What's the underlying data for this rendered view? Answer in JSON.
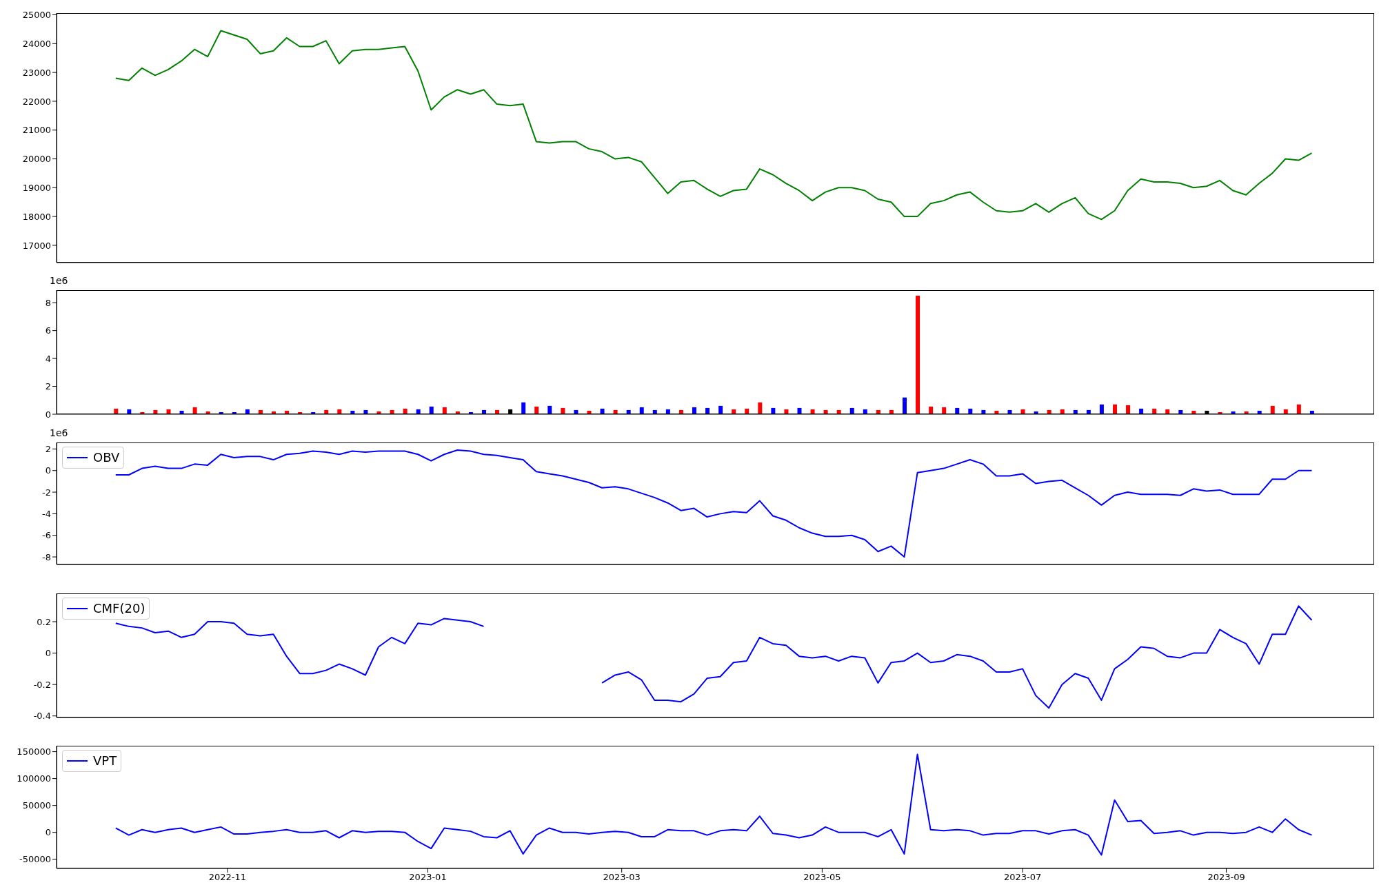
{
  "chart_data": [
    {
      "type": "line",
      "color": "#008000",
      "xlim": [
        "2022-09-10",
        "2023-10-16"
      ],
      "xticks": [
        "2022-11",
        "2023-01",
        "2023-03",
        "2023-05",
        "2023-07",
        "2023-09"
      ],
      "ylim": [
        16400,
        25060
      ],
      "yticks": [
        17000,
        18000,
        19000,
        20000,
        21000,
        22000,
        23000,
        24000,
        25000
      ],
      "tick_labels": "y",
      "x": [
        "2022-09-28",
        "2022-10-02",
        "2022-10-06",
        "2022-10-10",
        "2022-10-14",
        "2022-10-18",
        "2022-10-22",
        "2022-10-26",
        "2022-10-30",
        "2022-11-03",
        "2022-11-07",
        "2022-11-11",
        "2022-11-15",
        "2022-11-19",
        "2022-11-23",
        "2022-11-27",
        "2022-12-01",
        "2022-12-05",
        "2022-12-09",
        "2022-12-13",
        "2022-12-17",
        "2022-12-21",
        "2022-12-25",
        "2022-12-29",
        "2023-01-02",
        "2023-01-06",
        "2023-01-10",
        "2023-01-14",
        "2023-01-18",
        "2023-01-22",
        "2023-01-26",
        "2023-01-30",
        "2023-02-03",
        "2023-02-07",
        "2023-02-11",
        "2023-02-15",
        "2023-02-19",
        "2023-02-23",
        "2023-02-27",
        "2023-03-03",
        "2023-03-07",
        "2023-03-11",
        "2023-03-15",
        "2023-03-19",
        "2023-03-23",
        "2023-03-27",
        "2023-03-31",
        "2023-04-04",
        "2023-04-08",
        "2023-04-12",
        "2023-04-16",
        "2023-04-20",
        "2023-04-24",
        "2023-04-28",
        "2023-05-02",
        "2023-05-06",
        "2023-05-10",
        "2023-05-14",
        "2023-05-18",
        "2023-05-22",
        "2023-05-26",
        "2023-05-30",
        "2023-06-03",
        "2023-06-07",
        "2023-06-11",
        "2023-06-15",
        "2023-06-19",
        "2023-06-23",
        "2023-06-27",
        "2023-07-01",
        "2023-07-05",
        "2023-07-09",
        "2023-07-13",
        "2023-07-17",
        "2023-07-21",
        "2023-07-25",
        "2023-07-29",
        "2023-08-02",
        "2023-08-06",
        "2023-08-10",
        "2023-08-14",
        "2023-08-18",
        "2023-08-22",
        "2023-08-26",
        "2023-08-30",
        "2023-09-03",
        "2023-09-07",
        "2023-09-11",
        "2023-09-15",
        "2023-09-19",
        "2023-09-23",
        "2023-09-27"
      ],
      "values": [
        22800,
        22720,
        23150,
        22900,
        23100,
        23400,
        23800,
        23550,
        24450,
        24300,
        24150,
        23650,
        23750,
        24200,
        23900,
        23900,
        24100,
        23300,
        23750,
        23800,
        23800,
        23850,
        23900,
        23050,
        21700,
        22150,
        22400,
        22250,
        22400,
        21900,
        21850,
        21900,
        20600,
        20550,
        20600,
        20600,
        20350,
        20250,
        20000,
        20050,
        19900,
        19350,
        18800,
        19200,
        19250,
        18950,
        18700,
        18900,
        18950,
        19650,
        19450,
        19150,
        18900,
        18550,
        18850,
        19000,
        19000,
        18900,
        18600,
        18500,
        18000,
        18000,
        18450,
        18550,
        18750,
        18850,
        18500,
        18200,
        18150,
        18200,
        18450,
        18150,
        18450,
        18650,
        18100,
        17900,
        18200,
        18900,
        19300,
        19200,
        19200,
        19150,
        19000,
        19050,
        19250,
        18900,
        18750,
        19150,
        19500,
        20000,
        19950,
        20200
      ]
    },
    {
      "type": "bar",
      "xlim": [
        "2022-09-10",
        "2023-10-16"
      ],
      "xticks": [
        "2022-11",
        "2023-01",
        "2023-03",
        "2023-05",
        "2023-07",
        "2023-09"
      ],
      "ylim": [
        0,
        8.9
      ],
      "yticks": [
        0,
        2,
        4,
        6,
        8
      ],
      "tick_labels": "y",
      "annotations": [
        "1e6"
      ],
      "x": [
        "2022-09-28",
        "2022-10-02",
        "2022-10-06",
        "2022-10-10",
        "2022-10-14",
        "2022-10-18",
        "2022-10-22",
        "2022-10-26",
        "2022-10-30",
        "2022-11-03",
        "2022-11-07",
        "2022-11-11",
        "2022-11-15",
        "2022-11-19",
        "2022-11-23",
        "2022-11-27",
        "2022-12-01",
        "2022-12-05",
        "2022-12-09",
        "2022-12-13",
        "2022-12-17",
        "2022-12-21",
        "2022-12-25",
        "2022-12-29",
        "2023-01-02",
        "2023-01-06",
        "2023-01-10",
        "2023-01-14",
        "2023-01-18",
        "2023-01-22",
        "2023-01-26",
        "2023-01-30",
        "2023-02-03",
        "2023-02-07",
        "2023-02-11",
        "2023-02-15",
        "2023-02-19",
        "2023-02-23",
        "2023-02-27",
        "2023-03-03",
        "2023-03-07",
        "2023-03-11",
        "2023-03-15",
        "2023-03-19",
        "2023-03-23",
        "2023-03-27",
        "2023-03-31",
        "2023-04-04",
        "2023-04-08",
        "2023-04-12",
        "2023-04-16",
        "2023-04-20",
        "2023-04-24",
        "2023-04-28",
        "2023-05-02",
        "2023-05-06",
        "2023-05-10",
        "2023-05-14",
        "2023-05-18",
        "2023-05-22",
        "2023-05-26",
        "2023-05-30",
        "2023-06-03",
        "2023-06-07",
        "2023-06-11",
        "2023-06-15",
        "2023-06-19",
        "2023-06-23",
        "2023-06-27",
        "2023-07-01",
        "2023-07-05",
        "2023-07-09",
        "2023-07-13",
        "2023-07-17",
        "2023-07-21",
        "2023-07-25",
        "2023-07-29",
        "2023-08-02",
        "2023-08-06",
        "2023-08-10",
        "2023-08-14",
        "2023-08-18",
        "2023-08-22",
        "2023-08-26",
        "2023-08-30",
        "2023-09-03",
        "2023-09-07",
        "2023-09-11",
        "2023-09-15",
        "2023-09-19",
        "2023-09-23",
        "2023-09-27"
      ],
      "values": [
        0.4,
        0.35,
        0.15,
        0.3,
        0.35,
        0.25,
        0.5,
        0.2,
        0.15,
        0.15,
        0.35,
        0.3,
        0.2,
        0.25,
        0.15,
        0.15,
        0.3,
        0.35,
        0.25,
        0.3,
        0.2,
        0.3,
        0.4,
        0.35,
        0.55,
        0.5,
        0.2,
        0.15,
        0.3,
        0.3,
        0.35,
        0.85,
        0.55,
        0.6,
        0.45,
        0.3,
        0.25,
        0.4,
        0.3,
        0.3,
        0.5,
        0.3,
        0.35,
        0.3,
        0.5,
        0.45,
        0.6,
        0.35,
        0.4,
        0.85,
        0.45,
        0.35,
        0.45,
        0.35,
        0.3,
        0.3,
        0.45,
        0.35,
        0.3,
        0.3,
        1.2,
        8.5,
        0.55,
        0.5,
        0.45,
        0.4,
        0.3,
        0.25,
        0.3,
        0.35,
        0.2,
        0.3,
        0.35,
        0.3,
        0.3,
        0.7,
        0.7,
        0.65,
        0.4,
        0.4,
        0.35,
        0.3,
        0.25,
        0.25,
        0.15,
        0.2,
        0.2,
        0.25,
        0.6,
        0.35,
        0.7,
        0.25
      ],
      "colors": [
        "#ff0000",
        "#0000ff",
        "#ff0000",
        "#ff0000",
        "#ff0000",
        "#0000ff",
        "#ff0000",
        "#ff0000",
        "#0000ff",
        "#0000ff",
        "#0000ff",
        "#ff0000",
        "#ff0000",
        "#ff0000",
        "#ff0000",
        "#0000ff",
        "#ff0000",
        "#ff0000",
        "#0000ff",
        "#0000ff",
        "#ff0000",
        "#ff0000",
        "#ff0000",
        "#0000ff",
        "#0000ff",
        "#ff0000",
        "#ff0000",
        "#0000ff",
        "#0000ff",
        "#ff0000",
        "#000000",
        "#0000ff",
        "#ff0000",
        "#0000ff",
        "#ff0000",
        "#0000ff",
        "#ff0000",
        "#0000ff",
        "#ff0000",
        "#0000ff",
        "#0000ff",
        "#0000ff",
        "#0000ff",
        "#ff0000",
        "#0000ff",
        "#0000ff",
        "#0000ff",
        "#ff0000",
        "#ff0000",
        "#ff0000",
        "#0000ff",
        "#ff0000",
        "#0000ff",
        "#ff0000",
        "#ff0000",
        "#ff0000",
        "#0000ff",
        "#0000ff",
        "#ff0000",
        "#ff0000",
        "#0000ff",
        "#ff0000",
        "#ff0000",
        "#ff0000",
        "#0000ff",
        "#0000ff",
        "#0000ff",
        "#ff0000",
        "#0000ff",
        "#ff0000",
        "#0000ff",
        "#ff0000",
        "#ff0000",
        "#0000ff",
        "#0000ff",
        "#0000ff",
        "#ff0000",
        "#ff0000",
        "#0000ff",
        "#ff0000",
        "#ff0000",
        "#0000ff",
        "#ff0000",
        "#000000",
        "#ff0000",
        "#0000ff",
        "#ff0000",
        "#0000ff",
        "#ff0000",
        "#ff0000",
        "#ff0000",
        "#0000ff"
      ]
    },
    {
      "type": "line",
      "xlim": [
        "2022-09-10",
        "2023-10-16"
      ],
      "xticks": [
        "2022-11",
        "2023-01",
        "2023-03",
        "2023-05",
        "2023-07",
        "2023-09"
      ],
      "ylim": [
        -8.7,
        2.6
      ],
      "yticks": [
        -8,
        -6,
        -4,
        -2,
        0,
        2
      ],
      "tick_labels": "y",
      "legend": "top left",
      "annotations": [
        "1e6"
      ],
      "x": [
        "2022-09-28",
        "2022-10-02",
        "2022-10-06",
        "2022-10-10",
        "2022-10-14",
        "2022-10-18",
        "2022-10-22",
        "2022-10-26",
        "2022-10-30",
        "2022-11-03",
        "2022-11-07",
        "2022-11-11",
        "2022-11-15",
        "2022-11-19",
        "2022-11-23",
        "2022-11-27",
        "2022-12-01",
        "2022-12-05",
        "2022-12-09",
        "2022-12-13",
        "2022-12-17",
        "2022-12-21",
        "2022-12-25",
        "2022-12-29",
        "2023-01-02",
        "2023-01-06",
        "2023-01-10",
        "2023-01-14",
        "2023-01-18",
        "2023-01-22",
        "2023-01-26",
        "2023-01-30",
        "2023-02-03",
        "2023-02-07",
        "2023-02-11",
        "2023-02-15",
        "2023-02-19",
        "2023-02-23",
        "2023-02-27",
        "2023-03-03",
        "2023-03-07",
        "2023-03-11",
        "2023-03-15",
        "2023-03-19",
        "2023-03-23",
        "2023-03-27",
        "2023-03-31",
        "2023-04-04",
        "2023-04-08",
        "2023-04-12",
        "2023-04-16",
        "2023-04-20",
        "2023-04-24",
        "2023-04-28",
        "2023-05-02",
        "2023-05-06",
        "2023-05-10",
        "2023-05-14",
        "2023-05-18",
        "2023-05-22",
        "2023-05-26",
        "2023-05-30",
        "2023-06-03",
        "2023-06-07",
        "2023-06-11",
        "2023-06-15",
        "2023-06-19",
        "2023-06-23",
        "2023-06-27",
        "2023-07-01",
        "2023-07-05",
        "2023-07-09",
        "2023-07-13",
        "2023-07-17",
        "2023-07-21",
        "2023-07-25",
        "2023-07-29",
        "2023-08-02",
        "2023-08-06",
        "2023-08-10",
        "2023-08-14",
        "2023-08-18",
        "2023-08-22",
        "2023-08-26",
        "2023-08-30",
        "2023-09-03",
        "2023-09-07",
        "2023-09-11",
        "2023-09-15",
        "2023-09-19",
        "2023-09-23",
        "2023-09-27"
      ],
      "series": [
        {
          "name": "OBV",
          "color": "#0000ff",
          "values": [
            -0.4,
            -0.4,
            0.2,
            0.4,
            0.2,
            0.2,
            0.6,
            0.5,
            1.5,
            1.2,
            1.3,
            1.3,
            1.0,
            1.5,
            1.6,
            1.8,
            1.7,
            1.5,
            1.8,
            1.7,
            1.8,
            1.8,
            1.8,
            1.5,
            0.9,
            1.5,
            1.9,
            1.8,
            1.5,
            1.4,
            1.2,
            1.0,
            -0.1,
            -0.3,
            -0.5,
            -0.8,
            -1.1,
            -1.6,
            -1.5,
            -1.7,
            -2.1,
            -2.5,
            -3.0,
            -3.7,
            -3.5,
            -4.3,
            -4.0,
            -3.8,
            -3.9,
            -2.8,
            -4.2,
            -4.6,
            -5.3,
            -5.8,
            -6.1,
            -6.1,
            -6.0,
            -6.4,
            -7.5,
            -7.0,
            -8.0,
            -0.2,
            0.0,
            0.2,
            0.6,
            1.0,
            0.6,
            -0.5,
            -0.5,
            -0.3,
            -1.2,
            -1.0,
            -0.9,
            -1.6,
            -2.3,
            -3.2,
            -2.3,
            -2.0,
            -2.2,
            -2.2,
            -2.2,
            -2.3,
            -1.7,
            -1.9,
            -1.8,
            -2.2,
            -2.2,
            -2.2,
            -0.8,
            -0.8,
            0.0,
            0.0
          ]
        }
      ]
    },
    {
      "type": "line",
      "xlim": [
        "2022-09-10",
        "2023-10-16"
      ],
      "xticks": [
        "2022-11",
        "2023-01",
        "2023-03",
        "2023-05",
        "2023-07",
        "2023-09"
      ],
      "ylim": [
        -0.41,
        0.38
      ],
      "yticks": [
        -0.4,
        -0.2,
        0.0,
        0.2
      ],
      "tick_labels": "y",
      "legend": "top left",
      "x": [
        "2022-09-28",
        "2022-10-02",
        "2022-10-06",
        "2022-10-10",
        "2022-10-14",
        "2022-10-18",
        "2022-10-22",
        "2022-10-26",
        "2022-10-30",
        "2022-11-03",
        "2022-11-07",
        "2022-11-11",
        "2022-11-15",
        "2022-11-19",
        "2022-11-23",
        "2022-11-27",
        "2022-12-01",
        "2022-12-05",
        "2022-12-09",
        "2022-12-13",
        "2022-12-17",
        "2022-12-21",
        "2022-12-25",
        "2022-12-29",
        "2023-01-02",
        "2023-01-06",
        "2023-01-10",
        "2023-01-14",
        "2023-01-18",
        "2023-01-22",
        "2023-01-26",
        "2023-01-30",
        "2023-02-03",
        "2023-02-07",
        "2023-02-11",
        "2023-02-15",
        "2023-02-19",
        "2023-02-23",
        "2023-02-27",
        "2023-03-03",
        "2023-03-07",
        "2023-03-11",
        "2023-03-15",
        "2023-03-19",
        "2023-03-23",
        "2023-03-27",
        "2023-03-31",
        "2023-04-04",
        "2023-04-08",
        "2023-04-12",
        "2023-04-16",
        "2023-04-20",
        "2023-04-24",
        "2023-04-28",
        "2023-05-02",
        "2023-05-06",
        "2023-05-10",
        "2023-05-14",
        "2023-05-18",
        "2023-05-22",
        "2023-05-26",
        "2023-05-30",
        "2023-06-03",
        "2023-06-07",
        "2023-06-11",
        "2023-06-15",
        "2023-06-19",
        "2023-06-23",
        "2023-06-27",
        "2023-07-01",
        "2023-07-05",
        "2023-07-09",
        "2023-07-13",
        "2023-07-17",
        "2023-07-21",
        "2023-07-25",
        "2023-07-29",
        "2023-08-02",
        "2023-08-06",
        "2023-08-10",
        "2023-08-14",
        "2023-08-18",
        "2023-08-22",
        "2023-08-26",
        "2023-08-30",
        "2023-09-03",
        "2023-09-07",
        "2023-09-11",
        "2023-09-15",
        "2023-09-19",
        "2023-09-23",
        "2023-09-27"
      ],
      "series": [
        {
          "name": "CMF(20)",
          "color": "#0000ff",
          "values": [
            0.19,
            0.17,
            0.16,
            0.13,
            0.14,
            0.1,
            0.12,
            0.2,
            0.2,
            0.19,
            0.12,
            0.11,
            0.12,
            -0.02,
            -0.13,
            -0.13,
            -0.11,
            -0.07,
            -0.1,
            -0.14,
            0.04,
            0.1,
            0.06,
            0.19,
            0.18,
            0.22,
            0.21,
            0.2,
            0.17,
            null,
            null,
            null,
            null,
            null,
            null,
            null,
            null,
            -0.19,
            -0.14,
            -0.12,
            -0.17,
            -0.3,
            -0.3,
            -0.31,
            -0.26,
            -0.16,
            -0.15,
            -0.06,
            -0.05,
            0.1,
            0.06,
            0.05,
            -0.02,
            -0.03,
            -0.02,
            -0.05,
            -0.02,
            -0.03,
            -0.19,
            -0.06,
            -0.05,
            0.0,
            -0.06,
            -0.05,
            -0.01,
            -0.02,
            -0.05,
            -0.12,
            -0.12,
            -0.1,
            -0.27,
            -0.35,
            -0.2,
            -0.13,
            -0.16,
            -0.3,
            -0.1,
            -0.04,
            0.04,
            0.03,
            -0.02,
            -0.03,
            0.0,
            0.0,
            0.15,
            0.1,
            0.06,
            -0.07,
            0.12,
            0.12,
            0.3,
            0.21
          ]
        }
      ]
    },
    {
      "type": "line",
      "xlim": [
        "2022-09-10",
        "2023-10-16"
      ],
      "xticks": [
        "2022-11",
        "2023-01",
        "2023-03",
        "2023-05",
        "2023-07",
        "2023-09"
      ],
      "ylim": [
        -67000,
        161000
      ],
      "yticks": [
        -50000,
        0,
        50000,
        100000,
        150000
      ],
      "legend": "top left",
      "x": [
        "2022-09-28",
        "2022-10-02",
        "2022-10-06",
        "2022-10-10",
        "2022-10-14",
        "2022-10-18",
        "2022-10-22",
        "2022-10-26",
        "2022-10-30",
        "2022-11-03",
        "2022-11-07",
        "2022-11-11",
        "2022-11-15",
        "2022-11-19",
        "2022-11-23",
        "2022-11-27",
        "2022-12-01",
        "2022-12-05",
        "2022-12-09",
        "2022-12-13",
        "2022-12-17",
        "2022-12-21",
        "2022-12-25",
        "2022-12-29",
        "2023-01-02",
        "2023-01-06",
        "2023-01-10",
        "2023-01-14",
        "2023-01-18",
        "2023-01-22",
        "2023-01-26",
        "2023-01-30",
        "2023-02-03",
        "2023-02-07",
        "2023-02-11",
        "2023-02-15",
        "2023-02-19",
        "2023-02-23",
        "2023-02-27",
        "2023-03-03",
        "2023-03-07",
        "2023-03-11",
        "2023-03-15",
        "2023-03-19",
        "2023-03-23",
        "2023-03-27",
        "2023-03-31",
        "2023-04-04",
        "2023-04-08",
        "2023-04-12",
        "2023-04-16",
        "2023-04-20",
        "2023-04-24",
        "2023-04-28",
        "2023-05-02",
        "2023-05-06",
        "2023-05-10",
        "2023-05-14",
        "2023-05-18",
        "2023-05-22",
        "2023-05-26",
        "2023-05-30",
        "2023-06-03",
        "2023-06-07",
        "2023-06-11",
        "2023-06-15",
        "2023-06-19",
        "2023-06-23",
        "2023-06-27",
        "2023-07-01",
        "2023-07-05",
        "2023-07-09",
        "2023-07-13",
        "2023-07-17",
        "2023-07-21",
        "2023-07-25",
        "2023-07-29",
        "2023-08-02",
        "2023-08-06",
        "2023-08-10",
        "2023-08-14",
        "2023-08-18",
        "2023-08-22",
        "2023-08-26",
        "2023-08-30",
        "2023-09-03",
        "2023-09-07",
        "2023-09-11",
        "2023-09-15",
        "2023-09-19",
        "2023-09-23",
        "2023-09-27"
      ],
      "series": [
        {
          "name": "VPT",
          "color": "#0000ff",
          "values": [
            8000,
            -5000,
            5000,
            0,
            5000,
            8000,
            0,
            5000,
            10000,
            -3000,
            -3000,
            0,
            2000,
            5000,
            0,
            0,
            3000,
            -10000,
            3000,
            0,
            2000,
            2000,
            0,
            -17000,
            -30000,
            8000,
            5000,
            2000,
            -8000,
            -10000,
            3000,
            -40000,
            -5000,
            8000,
            0,
            0,
            -3000,
            0,
            2000,
            0,
            -8000,
            -8000,
            5000,
            3000,
            3000,
            -5000,
            3000,
            5000,
            3000,
            30000,
            -2000,
            -5000,
            -10000,
            -5000,
            10000,
            0,
            0,
            0,
            -8000,
            5000,
            -40000,
            145000,
            5000,
            3000,
            5000,
            3000,
            -5000,
            -2000,
            -2000,
            3000,
            3000,
            -3000,
            3000,
            5000,
            -5000,
            -42000,
            60000,
            20000,
            22000,
            -2000,
            0,
            3000,
            -5000,
            0,
            0,
            -2000,
            0,
            10000,
            0,
            25000,
            5000,
            -5000
          ]
        }
      ]
    }
  ]
}
